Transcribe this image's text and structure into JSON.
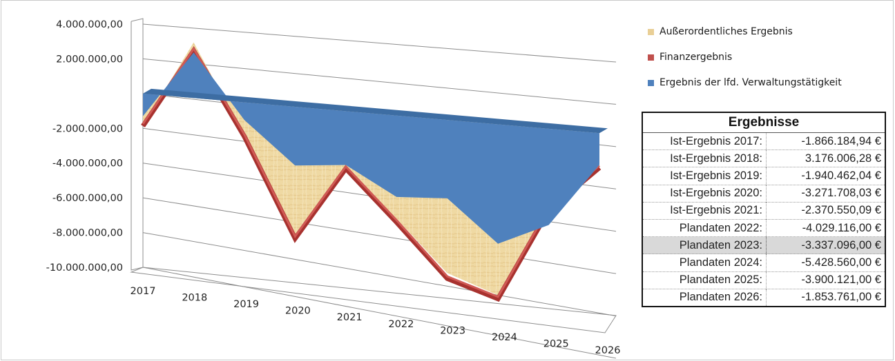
{
  "chart_data": {
    "type": "area",
    "title": "",
    "xlabel": "",
    "ylabel": "",
    "categories": [
      "2017",
      "2018",
      "2019",
      "2020",
      "2021",
      "2022",
      "2023",
      "2024",
      "2025",
      "2026"
    ],
    "ylim": [
      -10000000,
      4000000
    ],
    "yticks": [
      "4.000.000,00",
      "2.000.000,00",
      "",
      "-2.000.000,00",
      "-4.000.000,00",
      "-6.000.000,00",
      "-8.000.000,00",
      "-10.000.000,00"
    ],
    "yticks_values": [
      4000000,
      2000000,
      0,
      -2000000,
      -4000000,
      -6000000,
      -8000000,
      -10000000
    ],
    "series": [
      {
        "name": "Außerordentliches Ergebnis",
        "color": "#e9cf96",
        "values": [
          -1866185,
          3176006,
          -1940462,
          -7200000,
          -3100000,
          -5700000,
          -8400000,
          -9300000,
          -4300000,
          -1853761
        ]
      },
      {
        "name": "Finanzergebnis",
        "color": "#c0504d",
        "values": [
          -1866185,
          2700000,
          -1940462,
          -7400000,
          -3200000,
          -5900000,
          -8700000,
          -9500000,
          -4400000,
          -1853761
        ]
      },
      {
        "name": "Ergebnis der lfd. Verwaltungstätigkeit",
        "color": "#4f81bd",
        "values": [
          -1300000,
          2600000,
          -1000000,
          -3300000,
          -3000000,
          -4500000,
          -4300000,
          -6500000,
          -5200000,
          -1700000
        ]
      }
    ],
    "legend_position": "right",
    "grid": true,
    "three_d": true
  },
  "table": {
    "header": "Ergebnisse",
    "rows": [
      {
        "label": "Ist-Ergebnis 2017:",
        "value": "-1.866.184,94 €"
      },
      {
        "label": "Ist-Ergebnis 2018:",
        "value": "3.176.006,28 €"
      },
      {
        "label": "Ist-Ergebnis 2019:",
        "value": "-1.940.462,04 €"
      },
      {
        "label": "Ist-Ergebnis 2020:",
        "value": "-3.271.708,03 €"
      },
      {
        "label": "Ist-Ergebnis 2021:",
        "value": "-2.370.550,09 €"
      },
      {
        "label": "Plandaten 2022:",
        "value": "-4.029.116,00 €"
      },
      {
        "label": "Plandaten 2023:",
        "value": "-3.337.096,00 €",
        "highlight": true
      },
      {
        "label": "Plandaten 2024:",
        "value": "-5.428.560,00 €"
      },
      {
        "label": "Plandaten 2025:",
        "value": "-3.900.121,00 €"
      },
      {
        "label": "Plandaten 2026:",
        "value": "-1.853.761,00 €"
      }
    ]
  }
}
